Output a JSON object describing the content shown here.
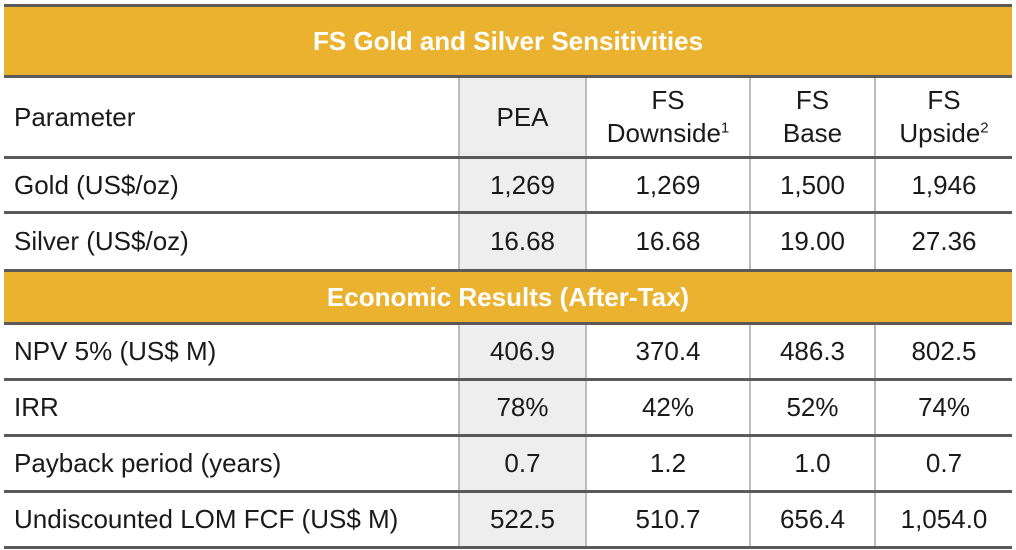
{
  "table": {
    "section1_title": "FS Gold and Silver Sensitivities",
    "section2_title": "Economic Results (After-Tax)",
    "header": {
      "parameter": "Parameter",
      "pea": "PEA",
      "downside_line1": "FS",
      "downside_line2": "Downside",
      "downside_sup": "1",
      "base_line1": "FS",
      "base_line2": "Base",
      "upside_line1": "FS",
      "upside_line2": "Upside",
      "upside_sup": "2"
    },
    "prices": [
      {
        "label": "Gold (US$/oz)",
        "pea": "1,269",
        "downside": "1,269",
        "base": "1,500",
        "upside": "1,946"
      },
      {
        "label": "Silver (US$/oz)",
        "pea": "16.68",
        "downside": "16.68",
        "base": "19.00",
        "upside": "27.36"
      }
    ],
    "results": [
      {
        "label": "NPV 5% (US$ M)",
        "pea": "406.9",
        "downside": "370.4",
        "base": "486.3",
        "upside": "802.5"
      },
      {
        "label": "IRR",
        "pea": "78%",
        "downside": "42%",
        "base": "52%",
        "upside": "74%"
      },
      {
        "label": "Payback period (years)",
        "pea": "0.7",
        "downside": "1.2",
        "base": "1.0",
        "upside": "0.7"
      },
      {
        "label": "Undiscounted LOM FCF (US$ M)",
        "pea": "522.5",
        "downside": "510.7",
        "base": "656.4",
        "upside": "1,054.0"
      }
    ]
  },
  "colors": {
    "section_fill": "#eab22f",
    "pea_column_fill": "#eeeeee",
    "rule": "#5a5a5a"
  }
}
